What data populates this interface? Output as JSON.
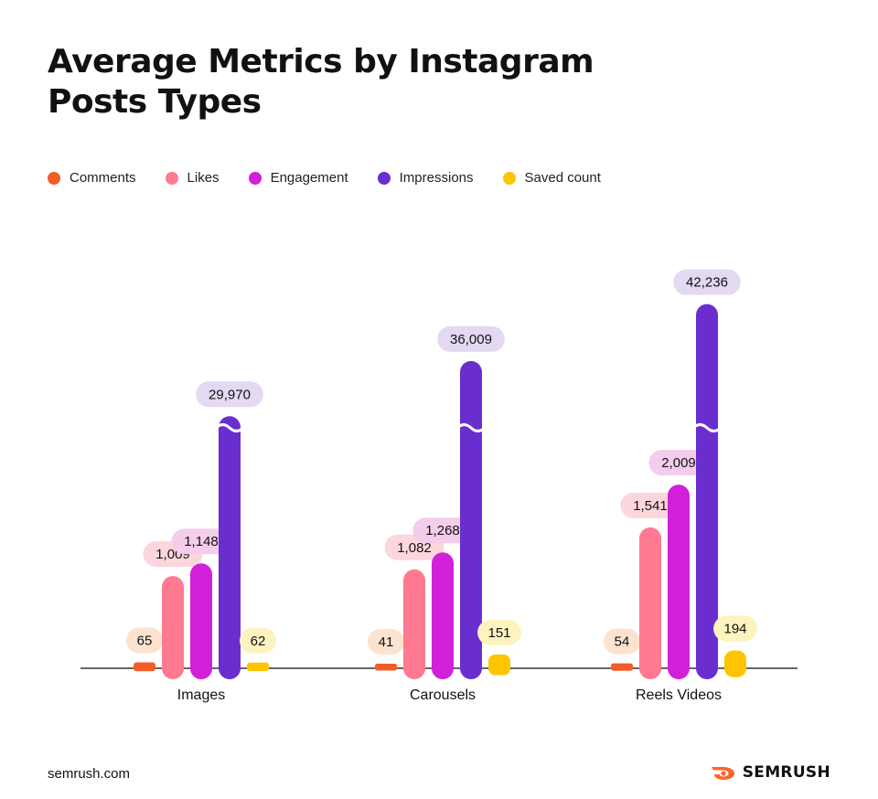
{
  "chart_data": {
    "type": "bar",
    "title": "Average Metrics by Instagram Posts Types",
    "categories": [
      "Images",
      "Carousels",
      "Reels Videos"
    ],
    "series": [
      {
        "name": "Comments",
        "color": "#F25C27",
        "pill_color": "#FCE3CF",
        "values": [
          65,
          41,
          54
        ]
      },
      {
        "name": "Likes",
        "color": "#FF7A90",
        "pill_color": "#FCD6DD",
        "values": [
          1009,
          1082,
          1541
        ]
      },
      {
        "name": "Engagement",
        "color": "#D21FD8",
        "pill_color": "#F3CDEB",
        "values": [
          1148,
          1268,
          2009
        ]
      },
      {
        "name": "Impressions",
        "color": "#6A2ECF",
        "pill_color": "#E3D9F1",
        "values": [
          29970,
          36009,
          42236
        ]
      },
      {
        "name": "Saved count",
        "color": "#FFC400",
        "pill_color": "#FDF3BF",
        "values": [
          62,
          151,
          194
        ]
      }
    ],
    "value_labels": [
      [
        "65",
        "1,009",
        "1,148",
        "29,970",
        "62"
      ],
      [
        "41",
        "1,082",
        "1,268",
        "36,009",
        "151"
      ],
      [
        "54",
        "1,541",
        "2,009",
        "42,236",
        "194"
      ]
    ],
    "axis_break_series": "Impressions",
    "xlabel": "",
    "ylabel": "",
    "grid": false,
    "legend_position": "top-left"
  },
  "title_lines": [
    "Average Metrics by Instagram",
    "Posts Types"
  ],
  "footer": {
    "url": "semrush.com",
    "brand": "SEMRUSH",
    "brand_color": "#FF642D"
  }
}
